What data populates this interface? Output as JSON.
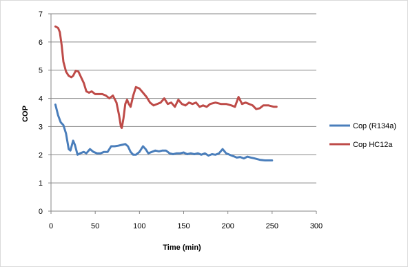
{
  "chart_data": {
    "type": "line",
    "xlabel": "Time (min)",
    "ylabel": "COP",
    "xlim": [
      0,
      300
    ],
    "ylim": [
      0,
      7
    ],
    "xticks": [
      0,
      50,
      100,
      150,
      200,
      250,
      300
    ],
    "yticks": [
      0,
      1,
      2,
      3,
      4,
      5,
      6,
      7
    ],
    "grid": "horizontal",
    "legend_position": "right",
    "series": [
      {
        "name": "Cop (R134a)",
        "color": "#4a7ebb",
        "points": [
          [
            5,
            3.78
          ],
          [
            8,
            3.4
          ],
          [
            11,
            3.15
          ],
          [
            14,
            3.05
          ],
          [
            17,
            2.75
          ],
          [
            20,
            2.2
          ],
          [
            22,
            2.15
          ],
          [
            25,
            2.5
          ],
          [
            27,
            2.35
          ],
          [
            30,
            2.0
          ],
          [
            33,
            2.05
          ],
          [
            37,
            2.1
          ],
          [
            40,
            2.05
          ],
          [
            44,
            2.2
          ],
          [
            48,
            2.1
          ],
          [
            52,
            2.05
          ],
          [
            56,
            2.05
          ],
          [
            60,
            2.1
          ],
          [
            64,
            2.1
          ],
          [
            68,
            2.3
          ],
          [
            72,
            2.3
          ],
          [
            76,
            2.32
          ],
          [
            80,
            2.35
          ],
          [
            84,
            2.38
          ],
          [
            87,
            2.3
          ],
          [
            90,
            2.1
          ],
          [
            93,
            2.0
          ],
          [
            96,
            2.0
          ],
          [
            100,
            2.1
          ],
          [
            104,
            2.3
          ],
          [
            107,
            2.2
          ],
          [
            110,
            2.05
          ],
          [
            114,
            2.1
          ],
          [
            118,
            2.15
          ],
          [
            122,
            2.12
          ],
          [
            126,
            2.15
          ],
          [
            130,
            2.15
          ],
          [
            134,
            2.05
          ],
          [
            138,
            2.02
          ],
          [
            142,
            2.05
          ],
          [
            146,
            2.05
          ],
          [
            150,
            2.08
          ],
          [
            154,
            2.02
          ],
          [
            158,
            2.05
          ],
          [
            162,
            2.02
          ],
          [
            166,
            2.05
          ],
          [
            170,
            2.0
          ],
          [
            174,
            2.05
          ],
          [
            178,
            1.97
          ],
          [
            182,
            2.02
          ],
          [
            186,
            2.0
          ],
          [
            190,
            2.05
          ],
          [
            194,
            2.2
          ],
          [
            198,
            2.05
          ],
          [
            202,
            2.0
          ],
          [
            206,
            1.95
          ],
          [
            210,
            1.9
          ],
          [
            214,
            1.92
          ],
          [
            218,
            1.87
          ],
          [
            222,
            1.93
          ],
          [
            226,
            1.9
          ],
          [
            230,
            1.87
          ],
          [
            236,
            1.82
          ],
          [
            242,
            1.8
          ],
          [
            248,
            1.8
          ],
          [
            250,
            1.8
          ]
        ]
      },
      {
        "name": "Cop HC12a",
        "color": "#be4b48",
        "points": [
          [
            5,
            6.55
          ],
          [
            8,
            6.5
          ],
          [
            10,
            6.35
          ],
          [
            12,
            5.9
          ],
          [
            14,
            5.3
          ],
          [
            17,
            4.95
          ],
          [
            20,
            4.8
          ],
          [
            23,
            4.75
          ],
          [
            25,
            4.8
          ],
          [
            28,
            4.98
          ],
          [
            31,
            4.95
          ],
          [
            34,
            4.75
          ],
          [
            37,
            4.55
          ],
          [
            40,
            4.25
          ],
          [
            43,
            4.2
          ],
          [
            46,
            4.25
          ],
          [
            50,
            4.15
          ],
          [
            54,
            4.15
          ],
          [
            58,
            4.15
          ],
          [
            62,
            4.1
          ],
          [
            66,
            4.0
          ],
          [
            70,
            4.1
          ],
          [
            74,
            3.85
          ],
          [
            77,
            3.4
          ],
          [
            79,
            3.0
          ],
          [
            80,
            2.95
          ],
          [
            82,
            3.3
          ],
          [
            84,
            3.8
          ],
          [
            86,
            3.95
          ],
          [
            88,
            3.8
          ],
          [
            90,
            3.7
          ],
          [
            93,
            4.1
          ],
          [
            96,
            4.4
          ],
          [
            100,
            4.35
          ],
          [
            104,
            4.2
          ],
          [
            108,
            4.05
          ],
          [
            112,
            3.85
          ],
          [
            116,
            3.75
          ],
          [
            120,
            3.8
          ],
          [
            124,
            3.85
          ],
          [
            128,
            4.0
          ],
          [
            132,
            3.8
          ],
          [
            136,
            3.85
          ],
          [
            140,
            3.7
          ],
          [
            144,
            3.95
          ],
          [
            148,
            3.8
          ],
          [
            152,
            3.75
          ],
          [
            156,
            3.85
          ],
          [
            160,
            3.8
          ],
          [
            164,
            3.85
          ],
          [
            168,
            3.7
          ],
          [
            172,
            3.75
          ],
          [
            176,
            3.7
          ],
          [
            180,
            3.8
          ],
          [
            186,
            3.85
          ],
          [
            192,
            3.8
          ],
          [
            198,
            3.8
          ],
          [
            204,
            3.75
          ],
          [
            208,
            3.7
          ],
          [
            212,
            4.05
          ],
          [
            216,
            3.8
          ],
          [
            220,
            3.85
          ],
          [
            224,
            3.8
          ],
          [
            228,
            3.75
          ],
          [
            232,
            3.62
          ],
          [
            236,
            3.65
          ],
          [
            240,
            3.75
          ],
          [
            246,
            3.75
          ],
          [
            252,
            3.7
          ],
          [
            255,
            3.7
          ]
        ]
      }
    ]
  }
}
